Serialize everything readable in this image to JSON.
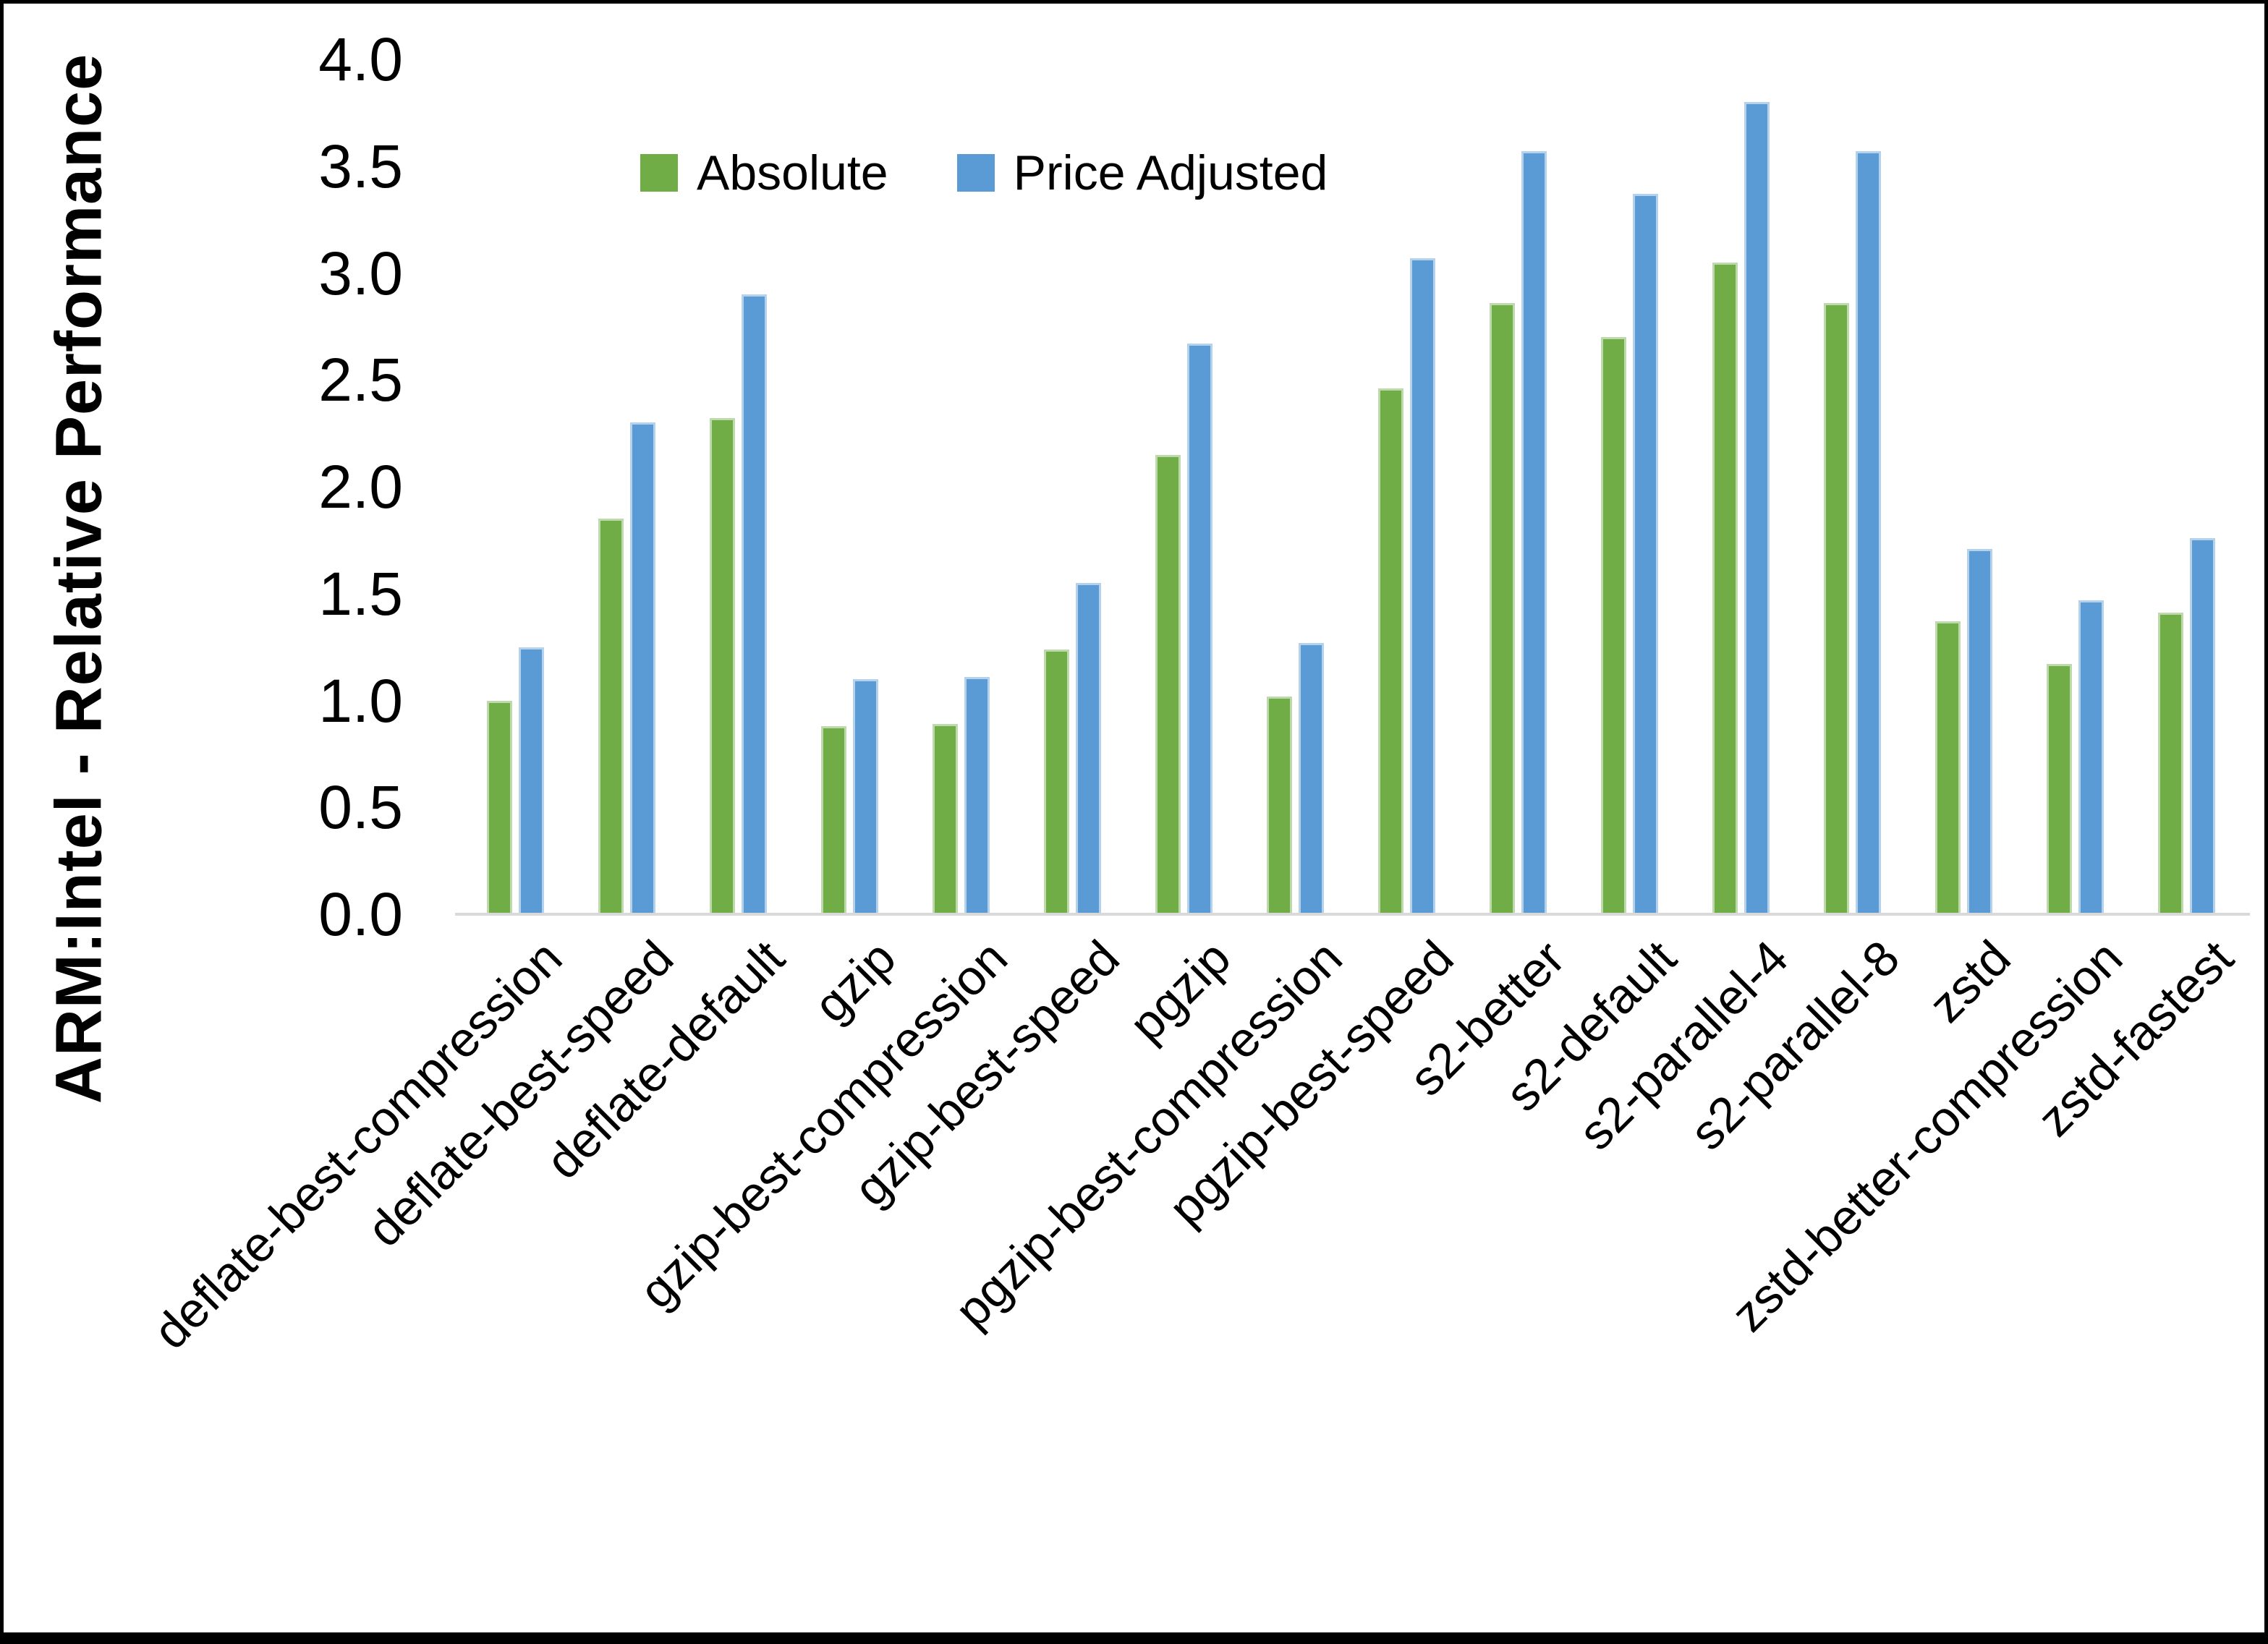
{
  "colors": {
    "absolute": "#70AD47",
    "price_adjusted": "#5B9BD5",
    "axis_line": "#D9D9D9",
    "text": "#000000",
    "background": "#FFFFFF",
    "frame": "#000000"
  },
  "legend": {
    "items": [
      {
        "label": "Absolute",
        "color": "#70AD47"
      },
      {
        "label": "Price Adjusted",
        "color": "#5B9BD5"
      }
    ]
  },
  "chart_data": {
    "type": "bar",
    "title": "",
    "xlabel": "",
    "ylabel": "ARM:Intel - Relative Performance",
    "ylim": [
      0,
      4
    ],
    "ytick_step": 0.5,
    "yticks": [
      "0.0",
      "0.5",
      "1.0",
      "1.5",
      "2.0",
      "2.5",
      "3.0",
      "3.5",
      "4.0"
    ],
    "grid": false,
    "legend_position": "top-center",
    "categories": [
      "deflate-best-compression",
      "deflate-best-speed",
      "deflate-default",
      "gzip",
      "gzip-best-compression",
      "gzip-best-speed",
      "pgzip",
      "pgzip-best-compression",
      "pgzip-best-speed",
      "s2-better",
      "s2-default",
      "s2-parallel-4",
      "s2-parallel-8",
      "zstd",
      "zstd-better-compression",
      "zstd-fastest"
    ],
    "series": [
      {
        "name": "Absolute",
        "color": "#70AD47",
        "values": [
          1.0,
          1.85,
          2.32,
          0.88,
          0.89,
          1.24,
          2.15,
          1.02,
          2.46,
          2.86,
          2.7,
          3.05,
          2.86,
          1.37,
          1.17,
          1.41
        ]
      },
      {
        "name": "Price Adjusted",
        "color": "#5B9BD5",
        "values": [
          1.25,
          2.3,
          2.9,
          1.1,
          1.11,
          1.55,
          2.67,
          1.27,
          3.07,
          3.57,
          3.37,
          3.8,
          3.57,
          1.71,
          1.47,
          1.76
        ]
      }
    ]
  }
}
